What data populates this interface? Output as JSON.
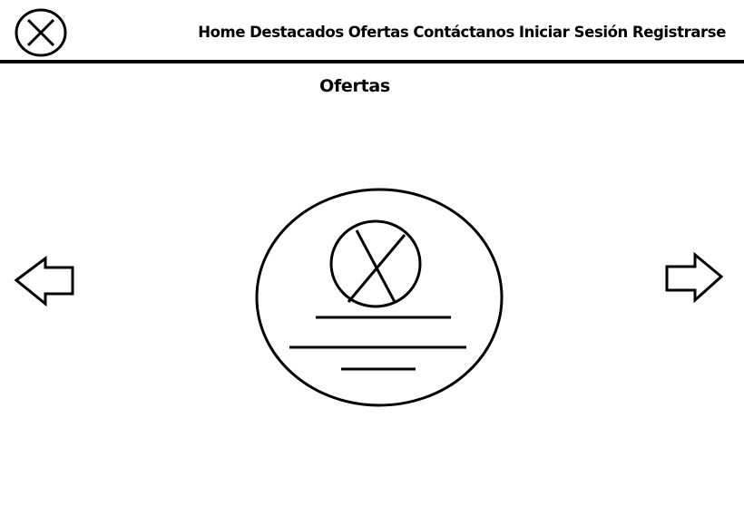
{
  "header": {
    "logo_icon": "close-circle-icon",
    "nav": [
      {
        "label": "Home"
      },
      {
        "label": "Destacados"
      },
      {
        "label": "Ofertas"
      },
      {
        "label": "Contáctanos"
      },
      {
        "label": "Iniciar Sesión"
      },
      {
        "label": "Registrarse"
      }
    ]
  },
  "main": {
    "title": "Ofertas",
    "carousel": {
      "prev_icon": "arrow-left-icon",
      "next_icon": "arrow-right-icon",
      "card": {
        "image_icon": "image-placeholder-icon"
      }
    }
  },
  "colors": {
    "background": "#ffffff",
    "foreground": "#000000"
  }
}
